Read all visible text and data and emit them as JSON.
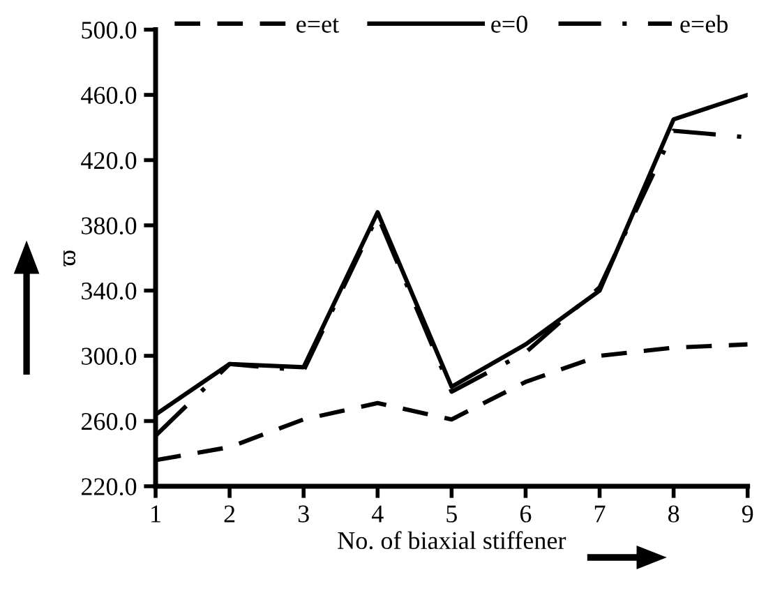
{
  "chart_data": {
    "type": "line",
    "xlabel": "No. of biaxial stiffener",
    "ylabel": "ϖ",
    "x": [
      1,
      2,
      3,
      4,
      5,
      6,
      7,
      8,
      9
    ],
    "series": [
      {
        "name": "e=et",
        "color": "#000000",
        "line_style": "dashed",
        "values": [
          236,
          244,
          261,
          271,
          261,
          284,
          300,
          305,
          307
        ]
      },
      {
        "name": "e=0",
        "color": "#000000",
        "line_style": "solid",
        "values": [
          264,
          295,
          293,
          388,
          281,
          307,
          340,
          445,
          460
        ]
      },
      {
        "name": "e=eb",
        "color": "#000000",
        "line_style": "dashdot",
        "values": [
          251,
          295,
          291,
          386,
          278,
          302,
          342,
          438,
          434
        ]
      }
    ],
    "xlim": [
      1,
      9
    ],
    "xticks": [
      1,
      2,
      3,
      4,
      5,
      6,
      7,
      8,
      9
    ],
    "ylim": [
      220,
      500
    ],
    "yticks": [
      {
        "value": 220,
        "label": "220.0"
      },
      {
        "value": 260,
        "label": "260.0"
      },
      {
        "value": 300,
        "label": "300.0"
      },
      {
        "value": 340,
        "label": "340.0"
      },
      {
        "value": 380,
        "label": "380.0"
      },
      {
        "value": 420,
        "label": "420.0"
      },
      {
        "value": 460,
        "label": "460.0"
      },
      {
        "value": 500,
        "label": "500.0"
      }
    ],
    "grid": false,
    "legend": "top",
    "marker": "none"
  }
}
